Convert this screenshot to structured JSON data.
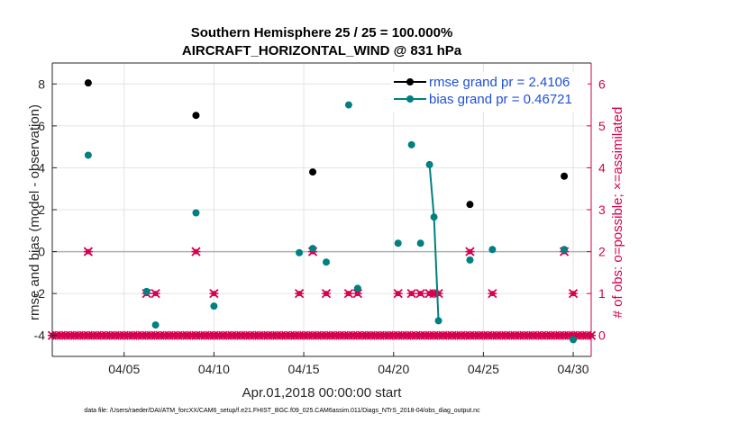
{
  "chart_data": {
    "type": "line",
    "title_line1": "Southern Hemisphere 25 / 25 = 100.000%",
    "title_line2": "AIRCRAFT_HORIZONTAL_WIND @ 831 hPa",
    "xlabel": "Apr.01,2018 00:00:00 start",
    "ylabel": "rmse and bias (model - observation)",
    "y2label": "# of obs: o=possible; ×=assimilated",
    "footnote": "data file: /Users/raeder/DAI/ATM_forcXX/CAM6_setup/f.e21.FHIST_BGC.f09_025.CAM6assim.011/Diags_NTrS_2018-04/obs_diag_output.nc",
    "xlim": [
      1,
      31
    ],
    "ylim": [
      -5,
      9
    ],
    "y2lim": [
      -0.5,
      6.5
    ],
    "grid": true,
    "xticks": [
      5,
      10,
      15,
      20,
      25,
      30
    ],
    "xtick_labels": [
      "04/05",
      "04/10",
      "04/15",
      "04/20",
      "04/25",
      "04/30"
    ],
    "yticks": [
      -4,
      -2,
      0,
      2,
      4,
      6,
      8
    ],
    "y2ticks": [
      0,
      1,
      2,
      3,
      4,
      5,
      6
    ],
    "colors": {
      "rmse": "#000000",
      "bias": "#008080",
      "count": "#d6004f",
      "zero": "#b0b0b0"
    },
    "legend": {
      "placement": "top-right",
      "entries": [
        {
          "key": "rmse",
          "label": "rmse grand pr = 2.4106"
        },
        {
          "key": "bias",
          "label": "bias grand pr = 0.46721"
        }
      ]
    },
    "series": [
      {
        "key": "rmse",
        "points": [
          [
            3.0,
            8.05
          ],
          [
            9.0,
            6.5
          ],
          [
            15.5,
            3.8
          ],
          [
            24.25,
            2.25
          ],
          [
            29.5,
            3.6
          ]
        ]
      },
      {
        "key": "bias",
        "points": [
          [
            3.0,
            4.6
          ],
          [
            6.25,
            -1.9
          ],
          [
            6.75,
            -3.5
          ],
          [
            9.0,
            1.85
          ],
          [
            10.0,
            -2.6
          ],
          [
            14.75,
            -0.05
          ],
          [
            15.5,
            0.15
          ],
          [
            16.25,
            -0.5
          ],
          [
            17.5,
            7.0
          ],
          [
            18.0,
            -1.75
          ],
          [
            20.25,
            0.4
          ],
          [
            21.0,
            5.1
          ],
          [
            21.5,
            0.4
          ],
          [
            22.0,
            4.15
          ],
          [
            22.25,
            1.65
          ],
          [
            22.5,
            -3.3
          ],
          [
            24.25,
            -0.4
          ],
          [
            25.5,
            0.1
          ],
          [
            29.5,
            0.1
          ],
          [
            30.0,
            -4.2
          ]
        ],
        "connected_segments": [
          [
            22.0,
            22.5
          ]
        ]
      },
      {
        "key": "count",
        "axis": "right",
        "possible_points": [
          [
            3.0,
            2
          ],
          [
            6.25,
            1
          ],
          [
            6.75,
            1
          ],
          [
            9.0,
            2
          ],
          [
            10.0,
            1
          ],
          [
            14.75,
            1
          ],
          [
            15.5,
            2
          ],
          [
            16.25,
            1
          ],
          [
            17.5,
            1
          ],
          [
            18.0,
            1
          ],
          [
            20.25,
            1
          ],
          [
            21.0,
            1
          ],
          [
            21.5,
            1
          ],
          [
            22.0,
            1
          ],
          [
            22.25,
            1
          ],
          [
            22.5,
            1
          ],
          [
            24.25,
            2
          ],
          [
            25.5,
            1
          ],
          [
            29.5,
            2
          ],
          [
            30.0,
            1
          ]
        ],
        "assimilated_value": 0,
        "assimilated_x_start": 1.0,
        "assimilated_x_end": 31.0,
        "assimilated_step": 0.25
      }
    ]
  }
}
